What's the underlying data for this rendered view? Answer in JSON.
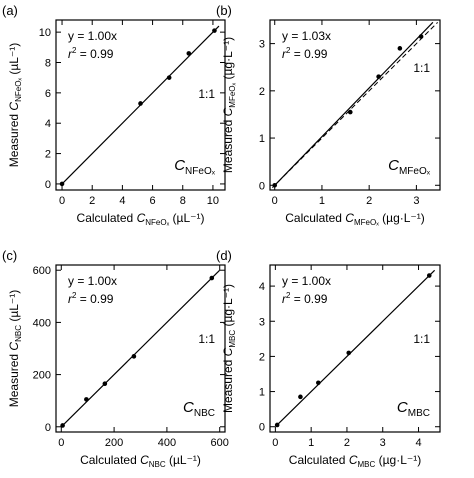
{
  "chart_data": [
    {
      "type": "scatter",
      "panel_label": "(a)",
      "xlabel": {
        "pre": "Calculated ",
        "sym": "C",
        "sub": "NFeOₓ",
        "unit": " (µL⁻¹)"
      },
      "ylabel": {
        "pre": "Measured ",
        "sym": "C",
        "sub": "NFeOₓ",
        "unit": " (µL⁻¹)"
      },
      "xlim": [
        -0.4,
        10.8
      ],
      "ylim": [
        -0.4,
        10.8
      ],
      "xticks": [
        0,
        2,
        4,
        6,
        8,
        10
      ],
      "yticks": [
        0,
        2,
        4,
        6,
        8,
        10
      ],
      "equation": "y = 1.00x",
      "r2_label": "r² = 0.99",
      "r2_var": "r",
      "r2_value": " = 0.99",
      "ratio_label": "1:1",
      "series_label": {
        "sym": "C",
        "sub": "NFeOₓ"
      },
      "fit_slope": 1.0,
      "fit_range": [
        0,
        10.4
      ],
      "show_dashed_1to1": false,
      "points": [
        [
          0,
          0
        ],
        [
          5.2,
          5.3
        ],
        [
          7.1,
          7.0
        ],
        [
          8.4,
          8.6
        ],
        [
          10.1,
          10.1
        ]
      ]
    },
    {
      "type": "scatter",
      "panel_label": "(b)",
      "xlabel": {
        "pre": "Calculated ",
        "sym": "C",
        "sub": "MFeOₓ",
        "unit": " (µg·L⁻¹)"
      },
      "ylabel": {
        "pre": "Measured ",
        "sym": "C",
        "sub": "MFeOₓ",
        "unit": " (µg·L⁻¹)"
      },
      "xlim": [
        -0.1,
        3.5
      ],
      "ylim": [
        -0.1,
        3.5
      ],
      "xticks": [
        0,
        1,
        2,
        3
      ],
      "yticks": [
        0,
        1,
        2,
        3
      ],
      "equation": "y = 1.03x",
      "r2_label": "r² = 0.99",
      "r2_var": "r",
      "r2_value": " = 0.99",
      "ratio_label": "1:1",
      "series_label": {
        "sym": "C",
        "sub": "MFeOₓ"
      },
      "fit_slope": 1.03,
      "fit_range": [
        0,
        3.35
      ],
      "show_dashed_1to1": true,
      "points": [
        [
          0,
          0
        ],
        [
          1.6,
          1.55
        ],
        [
          2.2,
          2.3
        ],
        [
          2.65,
          2.9
        ],
        [
          3.1,
          3.15
        ]
      ]
    },
    {
      "type": "scatter",
      "panel_label": "(c)",
      "xlabel": {
        "pre": "Calculated ",
        "sym": "C",
        "sub": "NBC",
        "unit": " (µL⁻¹)"
      },
      "ylabel": {
        "pre": "Measured ",
        "sym": "C",
        "sub": "NBC",
        "unit": " (µL⁻¹)"
      },
      "xlim": [
        -20,
        620
      ],
      "ylim": [
        -20,
        620
      ],
      "xticks": [
        0,
        200,
        400,
        600
      ],
      "yticks": [
        0,
        200,
        400,
        600
      ],
      "equation": "y = 1.00x",
      "r2_label": "r² = 0.99",
      "r2_var": "r",
      "r2_value": " = 0.99",
      "ratio_label": "1:1",
      "series_label": {
        "sym": "C",
        "sub": "NBC"
      },
      "fit_slope": 1.0,
      "fit_range": [
        0,
        600
      ],
      "show_dashed_1to1": false,
      "points": [
        [
          5,
          5
        ],
        [
          95,
          105
        ],
        [
          165,
          165
        ],
        [
          275,
          270
        ],
        [
          570,
          570
        ]
      ]
    },
    {
      "type": "scatter",
      "panel_label": "(d)",
      "xlabel": {
        "pre": "Calculated ",
        "sym": "C",
        "sub": "MBC",
        "unit": " (µg·L⁻¹)"
      },
      "ylabel": {
        "pre": "Measured ",
        "sym": "C",
        "sub": "MBC",
        "unit": " (µg·L⁻¹)"
      },
      "xlim": [
        -0.15,
        4.6
      ],
      "ylim": [
        -0.15,
        4.6
      ],
      "xticks": [
        0,
        1,
        2,
        3,
        4
      ],
      "yticks": [
        0,
        1,
        2,
        3,
        4
      ],
      "equation": "y = 1.00x",
      "r2_label": "r² = 0.99",
      "r2_var": "r",
      "r2_value": " = 0.99",
      "ratio_label": "1:1",
      "series_label": {
        "sym": "C",
        "sub": "MBC"
      },
      "fit_slope": 1.0,
      "fit_range": [
        0,
        4.45
      ],
      "show_dashed_1to1": false,
      "points": [
        [
          0.05,
          0.05
        ],
        [
          0.7,
          0.85
        ],
        [
          1.2,
          1.25
        ],
        [
          2.05,
          2.1
        ],
        [
          4.3,
          4.3
        ]
      ]
    }
  ]
}
